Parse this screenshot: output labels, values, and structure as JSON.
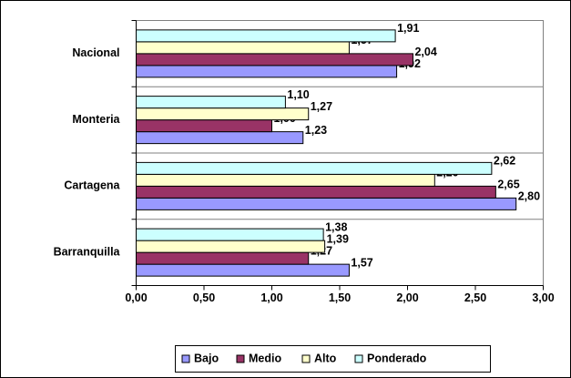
{
  "chart_data": {
    "type": "barh",
    "categories": [
      "Barranquilla",
      "Cartagena",
      "Monteria",
      "Nacional"
    ],
    "series": [
      {
        "name": "Bajo",
        "color": "#9999ff",
        "values": [
          1.57,
          2.8,
          1.23,
          1.92
        ],
        "value_labels": [
          "1,57",
          "2,80",
          "1,23",
          "1,92"
        ]
      },
      {
        "name": "Medio",
        "color": "#993366",
        "values": [
          1.27,
          2.65,
          1.0,
          2.04
        ],
        "value_labels": [
          "1,27",
          "2,65",
          "1,00",
          "2,04"
        ]
      },
      {
        "name": "Alto",
        "color": "#ffffcc",
        "values": [
          1.39,
          2.2,
          1.27,
          1.57
        ],
        "value_labels": [
          "1,39",
          "2,20",
          "1,27",
          "1,57"
        ]
      },
      {
        "name": "Ponderado",
        "color": "#ccffff",
        "values": [
          1.38,
          2.62,
          1.1,
          1.91
        ],
        "value_labels": [
          "1,38",
          "2,62",
          "1,10",
          "1,91"
        ]
      }
    ],
    "xlim": [
      0,
      3
    ],
    "xticks": [
      {
        "value": 0,
        "label": "0,00"
      },
      {
        "value": 0.5,
        "label": "0,50"
      },
      {
        "value": 1,
        "label": "1,00"
      },
      {
        "value": 1.5,
        "label": "1,50"
      },
      {
        "value": 2,
        "label": "2,00"
      },
      {
        "value": 2.5,
        "label": "2,50"
      },
      {
        "value": 3,
        "label": "3,00"
      }
    ],
    "legend": "bottom"
  }
}
